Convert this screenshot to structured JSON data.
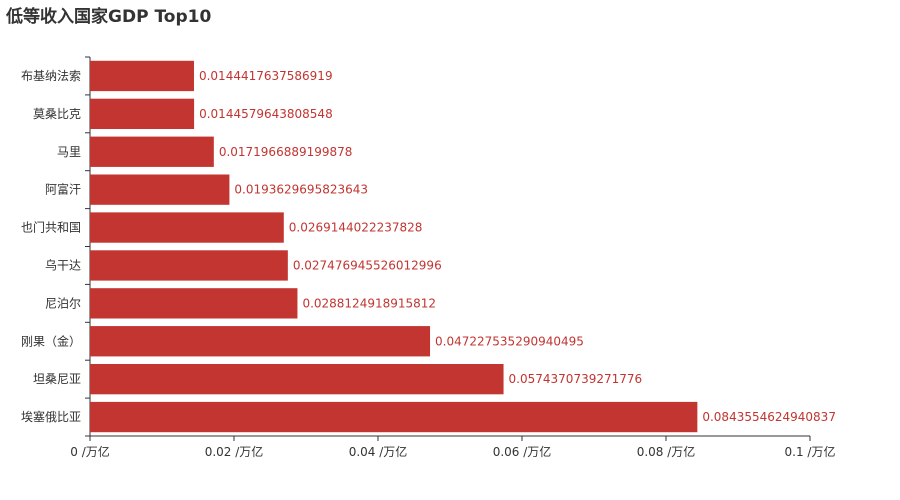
{
  "chart_data": {
    "type": "bar",
    "orientation": "horizontal",
    "title": "低等收入国家GDP Top10",
    "categories": [
      "布基纳法索",
      "莫桑比克",
      "马里",
      "阿富汗",
      "也门共和国",
      "乌干达",
      "尼泊尔",
      "刚果（金）",
      "坦桑尼亚",
      "埃塞俄比亚"
    ],
    "values": [
      0.0144417637586919,
      0.0144579643808548,
      0.0171966889199878,
      0.0193629695823643,
      0.0269144022237828,
      0.027476945526012996,
      0.0288124918915812,
      0.047227535290940495,
      0.0574370739271776,
      0.0843554624940837
    ],
    "value_labels": [
      "0.0144417637586919",
      "0.0144579643808548",
      "0.0171966889199878",
      "0.0193629695823643",
      "0.0269144022237828",
      "0.027476945526012996",
      "0.0288124918915812",
      "0.047227535290940495",
      "0.0574370739271776",
      "0.0843554624940837"
    ],
    "xlim": [
      0,
      0.1
    ],
    "x_ticks": [
      0,
      0.02,
      0.04,
      0.06,
      0.08,
      0.1
    ],
    "x_tick_labels": [
      "0 /万亿",
      "0.02 /万亿",
      "0.04 /万亿",
      "0.06 /万亿",
      "0.08 /万亿",
      "0.1 /万亿"
    ],
    "bar_color": "#c23531",
    "xlabel": "",
    "ylabel": "",
    "legend": "none",
    "grid": false
  }
}
